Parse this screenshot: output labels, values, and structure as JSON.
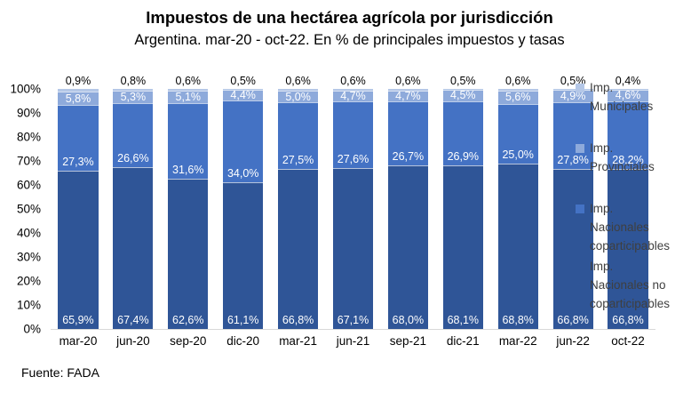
{
  "title": "Impuestos de una hectárea agrícola por jurisdicción",
  "subtitle": "Argentina. mar-20 - oct-22. En % de principales impuestos y tasas",
  "source": "Fuente: FADA",
  "chart_data": {
    "type": "bar",
    "stacked": true,
    "title": "Impuestos de una hectárea agrícola por jurisdicción",
    "subtitle": "Argentina. mar-20 - oct-22. En % de principales impuestos y tasas",
    "categories": [
      "mar-20",
      "jun-20",
      "sep-20",
      "dic-20",
      "mar-21",
      "jun-21",
      "sep-21",
      "dic-21",
      "mar-22",
      "jun-22",
      "oct-22"
    ],
    "series": [
      {
        "name": "Imp. Municipales",
        "color": "#B4C7E7",
        "label_position": "outside-top",
        "values": [
          0.9,
          0.8,
          0.6,
          0.5,
          0.6,
          0.6,
          0.6,
          0.5,
          0.6,
          0.5,
          0.4
        ],
        "labels": [
          "0,9%",
          "0,8%",
          "0,6%",
          "0,5%",
          "0,6%",
          "0,6%",
          "0,6%",
          "0,5%",
          "0,6%",
          "0,5%",
          "0,4%"
        ]
      },
      {
        "name": "Imp. Provinciales",
        "color": "#8EAADB",
        "label_position": "center",
        "values": [
          5.8,
          5.3,
          5.1,
          4.4,
          5.0,
          4.7,
          4.7,
          4.5,
          5.6,
          4.9,
          4.6
        ],
        "labels": [
          "5,8%",
          "5,3%",
          "5,1%",
          "4,4%",
          "5,0%",
          "4,7%",
          "4,7%",
          "4,5%",
          "5,6%",
          "4,9%",
          "4,6%"
        ]
      },
      {
        "name": "Imp. Nacionales coparticipables",
        "color": "#4472C4",
        "label_position": "inside-base",
        "values": [
          27.3,
          26.6,
          31.6,
          34.0,
          27.5,
          27.6,
          26.7,
          26.9,
          25.0,
          27.8,
          28.2
        ],
        "labels": [
          "27,3%",
          "26,6%",
          "31,6%",
          "34,0%",
          "27,5%",
          "27,6%",
          "26,7%",
          "26,9%",
          "25,0%",
          "27,8%",
          "28,2%"
        ]
      },
      {
        "name": "Imp. Nacionales no coparticipables",
        "color": "#2F5597",
        "label_position": "inside-base",
        "values": [
          65.9,
          67.4,
          62.6,
          61.1,
          66.8,
          67.1,
          68.0,
          68.1,
          68.8,
          66.8,
          66.8
        ],
        "labels": [
          "65,9%",
          "67,4%",
          "62,6%",
          "61,1%",
          "66,8%",
          "67,1%",
          "68,0%",
          "68,1%",
          "68,8%",
          "66,8%",
          "66,8%"
        ]
      }
    ],
    "ylim": [
      0,
      100
    ],
    "yticks": [
      "100%",
      "90%",
      "80%",
      "70%",
      "60%",
      "50%",
      "40%",
      "30%",
      "20%",
      "10%",
      "0%"
    ],
    "grid": false,
    "legend_position": "right"
  },
  "legend": {
    "items": [
      {
        "lines": [
          "Imp.",
          "Municipales"
        ],
        "color": "#B4C7E7"
      },
      {
        "lines": [
          "Imp.",
          "Provinciales"
        ],
        "color": "#8EAADB"
      },
      {
        "lines": [
          "Imp.",
          "Nacionales",
          "coparticipables"
        ],
        "color": "#4472C4"
      },
      {
        "lines": [
          "Imp.",
          "Nacionales no",
          "coparticipables"
        ],
        "color": "#2F5597"
      }
    ]
  }
}
